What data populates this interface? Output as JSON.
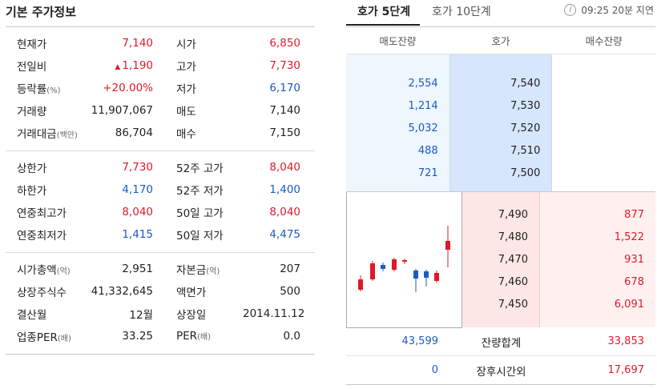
{
  "left": {
    "title": "기본 주가정보",
    "sections": [
      [
        {
          "l": "현재가",
          "lu": "",
          "v1": "7,140",
          "c1": "red",
          "tri": "",
          "l2": "시가",
          "l2u": "",
          "v2": "6,850",
          "c2": "red"
        },
        {
          "l": "전일비",
          "lu": "",
          "v1": "1,190",
          "c1": "red",
          "tri": "▲",
          "l2": "고가",
          "l2u": "",
          "v2": "7,730",
          "c2": "red"
        },
        {
          "l": "등락률",
          "lu": "(%)",
          "v1": "+20.00%",
          "c1": "red",
          "tri": "",
          "l2": "저가",
          "l2u": "",
          "v2": "6,170",
          "c2": "blue"
        },
        {
          "l": "거래량",
          "lu": "",
          "v1": "11,907,067",
          "c1": "",
          "tri": "",
          "l2": "매도",
          "l2u": "",
          "v2": "7,140",
          "c2": ""
        },
        {
          "l": "거래대금",
          "lu": "(백만)",
          "v1": "86,704",
          "c1": "",
          "tri": "",
          "l2": "매수",
          "l2u": "",
          "v2": "7,150",
          "c2": ""
        }
      ],
      [
        {
          "l": "상한가",
          "lu": "",
          "v1": "7,730",
          "c1": "red",
          "tri": "",
          "l2": "52주 고가",
          "l2u": "",
          "v2": "8,040",
          "c2": "red"
        },
        {
          "l": "하한가",
          "lu": "",
          "v1": "4,170",
          "c1": "blue",
          "tri": "",
          "l2": "52주 저가",
          "l2u": "",
          "v2": "1,400",
          "c2": "blue"
        },
        {
          "l": "연중최고가",
          "lu": "",
          "v1": "8,040",
          "c1": "red",
          "tri": "",
          "l2": "50일 고가",
          "l2u": "",
          "v2": "8,040",
          "c2": "red"
        },
        {
          "l": "연중최저가",
          "lu": "",
          "v1": "1,415",
          "c1": "blue",
          "tri": "",
          "l2": "50일 저가",
          "l2u": "",
          "v2": "4,475",
          "c2": "blue"
        }
      ],
      [
        {
          "l": "시가총액",
          "lu": "(억)",
          "v1": "2,951",
          "c1": "",
          "tri": "",
          "l2": "자본금",
          "l2u": "(억)",
          "v2": "207",
          "c2": ""
        },
        {
          "l": "상장주식수",
          "lu": "",
          "v1": "41,332,645",
          "c1": "",
          "tri": "",
          "l2": "액면가",
          "l2u": "",
          "v2": "500",
          "c2": ""
        },
        {
          "l": "결산월",
          "lu": "",
          "v1": "12월",
          "c1": "",
          "tri": "",
          "l2": "상장일",
          "l2u": "",
          "v2": "2014.11.12",
          "c2": ""
        },
        {
          "l": "업종PER",
          "lu": "(배)",
          "v1": "33.25",
          "c1": "",
          "tri": "",
          "l2": "PER",
          "l2u": "(배)",
          "v2": "0.0",
          "c2": ""
        }
      ]
    ]
  },
  "right": {
    "tabs": [
      "호가 5단계",
      "호가 10단계"
    ],
    "info_icon": "info-icon",
    "delay_text": "09:25 20분 지연",
    "headers": [
      "매도잔량",
      "호가",
      "매수잔량"
    ],
    "asks": [
      {
        "qty": "2,554",
        "price": "7,540"
      },
      {
        "qty": "1,214",
        "price": "7,530"
      },
      {
        "qty": "5,032",
        "price": "7,520"
      },
      {
        "qty": "488",
        "price": "7,510"
      },
      {
        "qty": "721",
        "price": "7,500"
      }
    ],
    "bids": [
      {
        "price": "7,490",
        "qty": "877"
      },
      {
        "price": "7,480",
        "qty": "1,522"
      },
      {
        "price": "7,470",
        "qty": "931"
      },
      {
        "price": "7,460",
        "qty": "678"
      },
      {
        "price": "7,450",
        "qty": "6,091"
      }
    ],
    "sum": {
      "ask": "43,599",
      "label": "잔량합계",
      "bid": "33,853"
    },
    "after": {
      "ask": "0",
      "label": "장후시간외",
      "bid": "17,697"
    }
  },
  "colors": {
    "up": "#e0192a",
    "down": "#1a5bc4",
    "ask_bg": "#eef6fe",
    "bid_bg": "#fff0f0"
  }
}
